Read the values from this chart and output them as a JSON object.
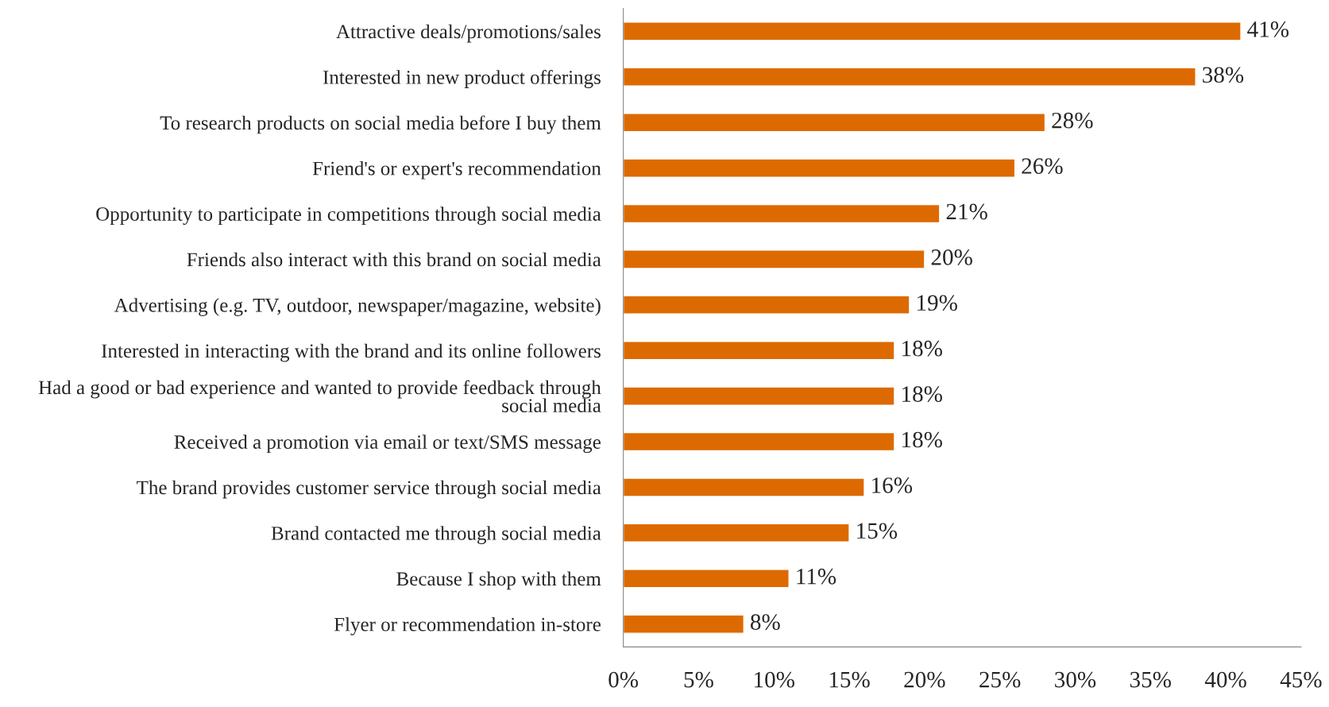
{
  "chart_data": {
    "type": "bar",
    "orientation": "horizontal",
    "categories": [
      "Attractive deals/promotions/sales",
      "Interested in new product offerings",
      "To research products on social media before I buy them",
      "Friend's or expert's recommendation",
      "Opportunity to participate in competitions through social media",
      "Friends also interact with this brand on social media",
      "Advertising (e.g. TV, outdoor, newspaper/magazine, website)",
      "Interested in interacting with the brand and its online followers",
      "Had a good or bad experience and wanted to provide feedback through\nsocial media",
      "Received a promotion via email or text/SMS message",
      "The brand provides customer service through social media",
      "Brand contacted me through social media",
      "Because I shop with them",
      "Flyer or recommendation in-store"
    ],
    "values": [
      41,
      38,
      28,
      26,
      21,
      20,
      19,
      18,
      18,
      18,
      16,
      15,
      11,
      8
    ],
    "value_labels": [
      "41%",
      "38%",
      "28%",
      "26%",
      "21%",
      "20%",
      "19%",
      "18%",
      "18%",
      "18%",
      "16%",
      "15%",
      "11%",
      "8%"
    ],
    "color": "#dd6a00",
    "xlim": [
      0,
      45
    ],
    "xticks": [
      {
        "value": 0,
        "label": "0%"
      },
      {
        "value": 5,
        "label": "5%"
      },
      {
        "value": 10,
        "label": "10%"
      },
      {
        "value": 15,
        "label": "15%"
      },
      {
        "value": 20,
        "label": "20%"
      },
      {
        "value": 25,
        "label": "25%"
      },
      {
        "value": 30,
        "label": "30%"
      },
      {
        "value": 35,
        "label": "35%"
      },
      {
        "value": 40,
        "label": "40%"
      },
      {
        "value": 45,
        "label": "45%"
      }
    ],
    "grid": false,
    "legend": false
  }
}
